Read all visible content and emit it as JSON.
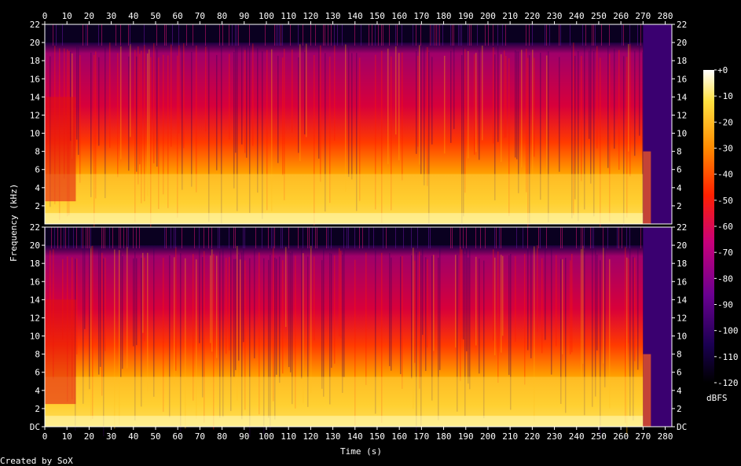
{
  "chart_data": {
    "type": "heatmap",
    "title": "",
    "xlabel": "Time (s)",
    "ylabel": "Frequency (kHz)",
    "xlim": [
      0,
      283
    ],
    "ylim_khz": [
      0,
      22
    ],
    "x_ticks": [
      "0",
      "10",
      "20",
      "30",
      "40",
      "50",
      "60",
      "70",
      "80",
      "90",
      "100",
      "110",
      "120",
      "130",
      "140",
      "150",
      "160",
      "170",
      "180",
      "190",
      "200",
      "210",
      "220",
      "230",
      "240",
      "250",
      "260",
      "270",
      "280"
    ],
    "y_ticks": [
      "DC",
      "2",
      "4",
      "6",
      "8",
      "10",
      "12",
      "14",
      "16",
      "18",
      "20",
      "22"
    ],
    "channels": 2,
    "colorbar": {
      "label": "dBFS",
      "ticks": [
        "+0",
        "-10",
        "-20",
        "-30",
        "-40",
        "-50",
        "-60",
        "-70",
        "-80",
        "-90",
        "-100",
        "-110",
        "-120"
      ],
      "range": [
        -120,
        0
      ]
    },
    "footer": "Created by SoX",
    "features": {
      "lowpass_cutoff_khz": 20,
      "fade_out_start_s": 270,
      "track_end_s": 283
    },
    "colors": {
      "background": "#000000",
      "axis": "#ffffff",
      "high": "#ffff80",
      "mid": "#ff3000",
      "low": "#400070"
    }
  }
}
